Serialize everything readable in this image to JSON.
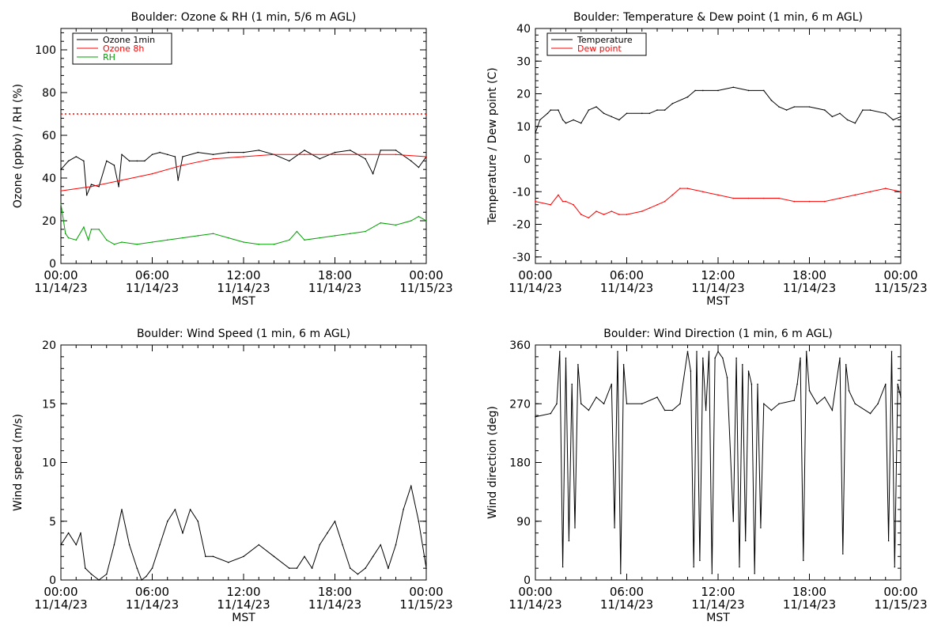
{
  "colors": {
    "black": "#000000",
    "red": "#ff0000",
    "green": "#00a000",
    "background": "#ffffff"
  },
  "chart_data": [
    {
      "type": "line",
      "title": "Boulder: Ozone & RH (1 min, 5/6 m AGL)",
      "xlabel": "MST",
      "ylabel": "Ozone (ppbv) / RH (%)",
      "xlim": [
        0,
        24
      ],
      "ylim": [
        0,
        110
      ],
      "y_ticks": [
        0,
        20,
        40,
        60,
        80,
        100
      ],
      "x_tick_labels": [
        {
          "time": "00:00",
          "date": "11/14/23"
        },
        {
          "time": "06:00",
          "date": "11/14/23"
        },
        {
          "time": "12:00",
          "date": "11/14/23"
        },
        {
          "time": "18:00",
          "date": "11/14/23"
        },
        {
          "time": "00:00",
          "date": "11/15/23"
        }
      ],
      "grid": false,
      "legend_position": "top-left",
      "reference_line": {
        "y": 70,
        "color": "#ff0000",
        "style": "dotted"
      },
      "series": [
        {
          "name": "Ozone 1min",
          "color": "#000000",
          "x": [
            0,
            0.5,
            1,
            1.5,
            1.7,
            2,
            2.5,
            3,
            3.5,
            3.8,
            4,
            4.5,
            5,
            5.5,
            6,
            6.5,
            7,
            7.5,
            7.7,
            8,
            9,
            10,
            11,
            12,
            13,
            14,
            15,
            16,
            17,
            18,
            19,
            20,
            20.5,
            21,
            22,
            23,
            23.5,
            24
          ],
          "values": [
            44,
            48,
            50,
            48,
            32,
            37,
            36,
            48,
            46,
            36,
            51,
            48,
            48,
            48,
            51,
            52,
            51,
            50,
            39,
            50,
            52,
            51,
            52,
            52,
            53,
            51,
            48,
            53,
            49,
            52,
            53,
            49,
            42,
            53,
            53,
            48,
            45,
            50
          ]
        },
        {
          "name": "Ozone 8h",
          "color": "#ff0000",
          "x": [
            0,
            2,
            4,
            6,
            8,
            10,
            12,
            14,
            16,
            18,
            20,
            22,
            24
          ],
          "values": [
            34,
            36,
            39,
            42,
            46,
            49,
            50,
            51,
            51,
            51,
            51,
            51,
            50
          ]
        },
        {
          "name": "RH",
          "color": "#00a000",
          "x": [
            0,
            0.3,
            0.5,
            1,
            1.5,
            1.8,
            2,
            2.5,
            3,
            3.5,
            4,
            5,
            6,
            7,
            8,
            9,
            10,
            11,
            12,
            13,
            14,
            15,
            15.5,
            16,
            17,
            18,
            19,
            20,
            21,
            22,
            23,
            23.5,
            24
          ],
          "values": [
            28,
            14,
            12,
            11,
            17,
            11,
            16,
            16,
            11,
            9,
            10,
            9,
            10,
            11,
            12,
            13,
            14,
            12,
            10,
            9,
            9,
            11,
            15,
            11,
            12,
            13,
            14,
            15,
            19,
            18,
            20,
            22,
            20
          ]
        }
      ]
    },
    {
      "type": "line",
      "title": "Boulder: Temperature & Dew point (1 min, 6 m AGL)",
      "xlabel": "MST",
      "ylabel": "Temperature / Dew point (C)",
      "xlim": [
        0,
        24
      ],
      "ylim": [
        -32,
        40
      ],
      "y_ticks": [
        -30,
        -20,
        -10,
        0,
        10,
        20,
        30,
        40
      ],
      "x_tick_labels": [
        {
          "time": "00:00",
          "date": "11/14/23"
        },
        {
          "time": "06:00",
          "date": "11/14/23"
        },
        {
          "time": "12:00",
          "date": "11/14/23"
        },
        {
          "time": "18:00",
          "date": "11/14/23"
        },
        {
          "time": "00:00",
          "date": "11/15/23"
        }
      ],
      "grid": false,
      "legend_position": "top-left",
      "series": [
        {
          "name": "Temperature",
          "color": "#000000",
          "x": [
            0,
            0.3,
            0.8,
            1,
            1.5,
            1.8,
            2,
            2.5,
            3,
            3.5,
            4,
            4.5,
            5,
            5.5,
            6,
            7,
            7.5,
            8,
            8.5,
            9,
            10,
            10.5,
            11,
            12,
            13,
            14,
            15,
            15.5,
            16,
            16.5,
            17,
            18,
            19,
            19.5,
            20,
            20.5,
            21,
            21.5,
            22,
            23,
            23.5,
            24
          ],
          "values": [
            8,
            12,
            14,
            15,
            15,
            12,
            11,
            12,
            11,
            15,
            16,
            14,
            13,
            12,
            14,
            14,
            14,
            15,
            15,
            17,
            19,
            21,
            21,
            21,
            22,
            21,
            21,
            18,
            16,
            15,
            16,
            16,
            15,
            13,
            14,
            12,
            11,
            15,
            15,
            14,
            12,
            13
          ]
        },
        {
          "name": "Dew point",
          "color": "#ff0000",
          "x": [
            0,
            1,
            1.5,
            1.8,
            2,
            2.5,
            3,
            3.5,
            4,
            4.5,
            5,
            5.5,
            6,
            7,
            7.5,
            8,
            8.5,
            9,
            9.5,
            10,
            11,
            12,
            13,
            14,
            15,
            16,
            17,
            18,
            19,
            20,
            21,
            22,
            23,
            24
          ],
          "values": [
            -13,
            -14,
            -11,
            -13,
            -13,
            -14,
            -17,
            -18,
            -16,
            -17,
            -16,
            -17,
            -17,
            -16,
            -15,
            -14,
            -13,
            -11,
            -9,
            -9,
            -10,
            -11,
            -12,
            -12,
            -12,
            -12,
            -13,
            -13,
            -13,
            -12,
            -11,
            -10,
            -9,
            -10
          ]
        }
      ]
    },
    {
      "type": "line",
      "title": "Boulder: Wind Speed (1 min, 6 m AGL)",
      "xlabel": "MST",
      "ylabel": "Wind speed (m/s)",
      "xlim": [
        0,
        24
      ],
      "ylim": [
        0,
        20
      ],
      "y_ticks": [
        0,
        5,
        10,
        15,
        20
      ],
      "x_tick_labels": [
        {
          "time": "00:00",
          "date": "11/14/23"
        },
        {
          "time": "06:00",
          "date": "11/14/23"
        },
        {
          "time": "12:00",
          "date": "11/14/23"
        },
        {
          "time": "18:00",
          "date": "11/14/23"
        },
        {
          "time": "00:00",
          "date": "11/15/23"
        }
      ],
      "grid": false,
      "series": [
        {
          "name": "",
          "color": "#000000",
          "x": [
            0,
            0.5,
            1,
            1.3,
            1.6,
            2,
            2.5,
            3,
            3.5,
            4,
            4.5,
            5,
            5.3,
            5.6,
            6,
            6.5,
            7,
            7.5,
            8,
            8.5,
            9,
            9.5,
            10,
            11,
            12,
            13,
            14,
            15,
            15.5,
            16,
            16.5,
            17,
            17.5,
            18,
            18.5,
            19,
            19.5,
            20,
            20.5,
            21,
            21.5,
            22,
            22.5,
            23,
            23.5,
            24
          ],
          "values": [
            3,
            4,
            3,
            4,
            1,
            0.5,
            0,
            0.5,
            3,
            6,
            3,
            1,
            0,
            0.3,
            1,
            3,
            5,
            6,
            4,
            6,
            5,
            2,
            2,
            1.5,
            2,
            3,
            2,
            1,
            1,
            2,
            1,
            3,
            4,
            5,
            3,
            1,
            0.5,
            1,
            2,
            3,
            1,
            3,
            6,
            8,
            5,
            1
          ]
        }
      ]
    },
    {
      "type": "line",
      "title": "Boulder: Wind Direction (1 min, 6 m AGL)",
      "xlabel": "MST",
      "ylabel": "Wind direction (deg)",
      "xlim": [
        0,
        24
      ],
      "ylim": [
        0,
        360
      ],
      "y_ticks": [
        0,
        90,
        180,
        270,
        360
      ],
      "x_tick_labels": [
        {
          "time": "00:00",
          "date": "11/14/23"
        },
        {
          "time": "06:00",
          "date": "11/14/23"
        },
        {
          "time": "12:00",
          "date": "11/14/23"
        },
        {
          "time": "18:00",
          "date": "11/14/23"
        },
        {
          "time": "00:00",
          "date": "11/15/23"
        }
      ],
      "grid": false,
      "series": [
        {
          "name": "",
          "color": "#000000",
          "x": [
            0,
            1,
            1.4,
            1.6,
            1.8,
            2,
            2.2,
            2.4,
            2.6,
            2.8,
            3,
            3.5,
            4,
            4.5,
            5,
            5.2,
            5.4,
            5.6,
            5.8,
            6,
            7,
            8,
            8.5,
            9,
            9.5,
            10,
            10.2,
            10.4,
            10.6,
            10.8,
            11,
            11.2,
            11.4,
            11.6,
            11.8,
            12,
            12.3,
            12.6,
            13,
            13.2,
            13.4,
            13.6,
            13.8,
            14,
            14.2,
            14.4,
            14.6,
            14.8,
            15,
            15.5,
            16,
            17,
            17.2,
            17.4,
            17.6,
            17.8,
            18,
            18.5,
            19,
            19.5,
            20,
            20.2,
            20.4,
            20.6,
            21,
            22,
            22.5,
            23,
            23.2,
            23.4,
            23.6,
            23.8,
            24
          ],
          "values": [
            250,
            255,
            270,
            350,
            20,
            340,
            60,
            300,
            80,
            330,
            270,
            260,
            280,
            270,
            300,
            80,
            350,
            10,
            330,
            270,
            270,
            280,
            260,
            260,
            270,
            350,
            320,
            20,
            350,
            30,
            340,
            260,
            350,
            10,
            340,
            350,
            340,
            310,
            90,
            340,
            20,
            330,
            60,
            320,
            300,
            10,
            300,
            80,
            270,
            260,
            270,
            275,
            300,
            340,
            30,
            350,
            290,
            270,
            280,
            260,
            340,
            40,
            330,
            290,
            270,
            255,
            270,
            300,
            60,
            350,
            20,
            300,
            280
          ]
        }
      ]
    }
  ]
}
